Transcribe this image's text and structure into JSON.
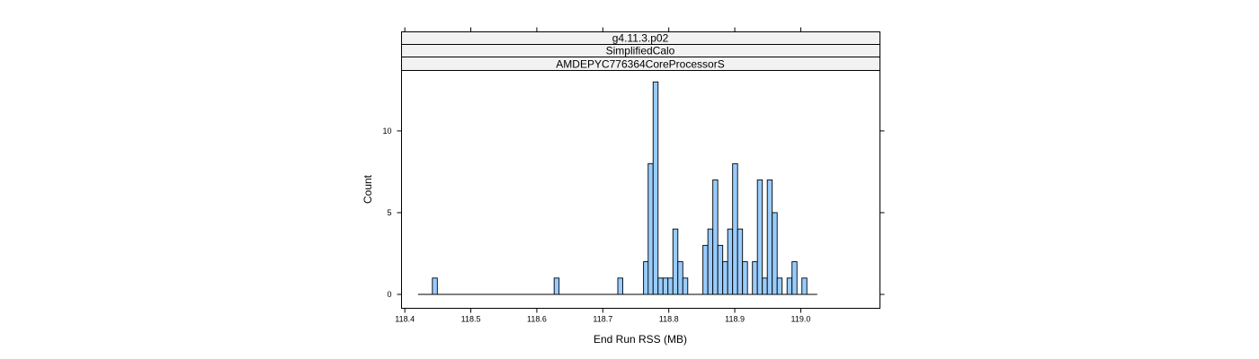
{
  "chart_data": {
    "type": "bar",
    "panel_strips": [
      "g4.11.3.p02",
      "SimplifiedCalo",
      "AMDEPYC776364CoreProcessorS"
    ],
    "xlabel": "End Run RSS (MB)",
    "ylabel": "Count",
    "xlim": [
      118.395,
      119.12
    ],
    "ylim": [
      -0.85,
      13.7
    ],
    "x_ticks": [
      118.4,
      118.5,
      118.6,
      118.7,
      118.8,
      118.9,
      119.0
    ],
    "x_tick_labels": [
      "118.4",
      "118.5",
      "118.6",
      "118.7",
      "118.8",
      "118.9",
      "119.0"
    ],
    "y_ticks": [
      0,
      5,
      10
    ],
    "y_tick_labels": [
      "0",
      "5",
      "10"
    ],
    "baseline_range": [
      118.42,
      119.025
    ],
    "bin_width": 0.0075,
    "bars": [
      {
        "x": 118.4455,
        "count": 1
      },
      {
        "x": 118.63,
        "count": 1
      },
      {
        "x": 118.7265,
        "count": 1
      },
      {
        "x": 118.7655,
        "count": 2
      },
      {
        "x": 118.7725,
        "count": 8
      },
      {
        "x": 118.78,
        "count": 13
      },
      {
        "x": 118.7875,
        "count": 1
      },
      {
        "x": 118.795,
        "count": 1
      },
      {
        "x": 118.8025,
        "count": 1
      },
      {
        "x": 118.81,
        "count": 4
      },
      {
        "x": 118.8175,
        "count": 2
      },
      {
        "x": 118.825,
        "count": 1
      },
      {
        "x": 118.8555,
        "count": 3
      },
      {
        "x": 118.863,
        "count": 4
      },
      {
        "x": 118.8705,
        "count": 7
      },
      {
        "x": 118.878,
        "count": 3
      },
      {
        "x": 118.8855,
        "count": 2
      },
      {
        "x": 118.893,
        "count": 4
      },
      {
        "x": 118.9005,
        "count": 8
      },
      {
        "x": 118.908,
        "count": 4
      },
      {
        "x": 118.9155,
        "count": 2
      },
      {
        "x": 118.9305,
        "count": 2
      },
      {
        "x": 118.938,
        "count": 7
      },
      {
        "x": 118.9455,
        "count": 1
      },
      {
        "x": 118.953,
        "count": 7
      },
      {
        "x": 118.9605,
        "count": 5
      },
      {
        "x": 118.968,
        "count": 1
      },
      {
        "x": 118.983,
        "count": 1
      },
      {
        "x": 118.9905,
        "count": 2
      },
      {
        "x": 119.0055,
        "count": 1
      }
    ],
    "bar_color": "#99ccff",
    "edge_color": "#000000",
    "strip_color": "#f2f2f2",
    "grid": false
  }
}
